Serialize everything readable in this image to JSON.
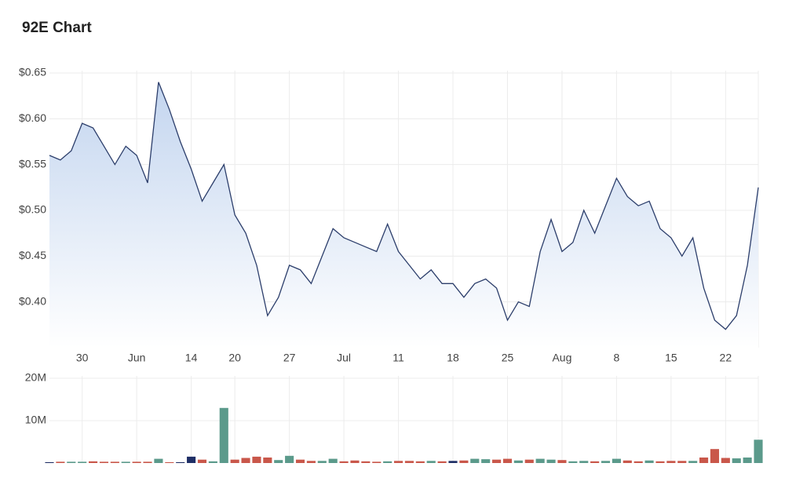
{
  "chart_data": [
    {
      "type": "area",
      "title": "92E Chart",
      "categories": [
        null,
        null,
        null,
        "30",
        null,
        null,
        null,
        null,
        "Jun",
        null,
        null,
        null,
        null,
        "14",
        null,
        null,
        null,
        "20",
        null,
        null,
        null,
        null,
        "27",
        null,
        null,
        null,
        null,
        "Jul",
        null,
        null,
        null,
        null,
        "11",
        null,
        null,
        null,
        null,
        "18",
        null,
        null,
        null,
        null,
        "25",
        null,
        null,
        null,
        null,
        "Aug",
        null,
        null,
        null,
        null,
        "8",
        null,
        null,
        null,
        null,
        "15",
        null,
        null,
        null,
        null,
        "22",
        null,
        null,
        null
      ],
      "values": [
        0.56,
        0.555,
        0.565,
        0.595,
        0.59,
        0.57,
        0.55,
        0.57,
        0.56,
        0.53,
        0.64,
        0.61,
        0.575,
        0.545,
        0.51,
        0.53,
        0.55,
        0.495,
        0.475,
        0.44,
        0.385,
        0.405,
        0.44,
        0.435,
        0.42,
        0.45,
        0.48,
        0.47,
        0.465,
        0.46,
        0.455,
        0.485,
        0.455,
        0.44,
        0.425,
        0.435,
        0.42,
        0.42,
        0.405,
        0.42,
        0.425,
        0.415,
        0.38,
        0.4,
        0.395,
        0.455,
        0.49,
        0.455,
        0.465,
        0.5,
        0.475,
        0.505,
        0.535,
        0.515,
        0.505,
        0.51,
        0.48,
        0.47,
        0.45,
        0.47,
        0.415,
        0.38,
        0.37,
        0.385,
        0.44,
        0.525
      ],
      "color": "#2c3e6b",
      "ylim": [
        0.35,
        0.65
      ],
      "yticks": [
        {
          "value": 0.4,
          "label": "$0.40"
        },
        {
          "value": 0.45,
          "label": "$0.45"
        },
        {
          "value": 0.5,
          "label": "$0.50"
        },
        {
          "value": 0.55,
          "label": "$0.55"
        },
        {
          "value": 0.6,
          "label": "$0.60"
        },
        {
          "value": 0.65,
          "label": "$0.65"
        }
      ],
      "grid": true
    },
    {
      "type": "bar",
      "values": [
        200000,
        300000,
        300000,
        300000,
        400000,
        300000,
        300000,
        300000,
        300000,
        300000,
        1000000,
        200000,
        200000,
        1500000,
        800000,
        400000,
        13000000,
        800000,
        1200000,
        1500000,
        1300000,
        700000,
        1700000,
        800000,
        500000,
        500000,
        1000000,
        400000,
        600000,
        400000,
        300000,
        400000,
        500000,
        500000,
        400000,
        500000,
        400000,
        500000,
        600000,
        1000000,
        900000,
        800000,
        1000000,
        600000,
        800000,
        1000000,
        800000,
        700000,
        400000,
        500000,
        400000,
        500000,
        1000000,
        600000,
        400000,
        600000,
        400000,
        500000,
        500000,
        500000,
        1300000,
        3300000,
        1200000,
        1100000,
        1300000,
        5500000
      ],
      "colors": [
        "#1f2f66",
        "#c9574a",
        "#5b9a8b",
        "#5b9a8b",
        "#c9574a",
        "#c9574a",
        "#c9574a",
        "#5b9a8b",
        "#c9574a",
        "#c9574a",
        "#5b9a8b",
        "#c9574a",
        "#1f2f66",
        "#1f2f66",
        "#c9574a",
        "#5b9a8b",
        "#5b9a8b",
        "#c9574a",
        "#c9574a",
        "#c9574a",
        "#c9574a",
        "#5b9a8b",
        "#5b9a8b",
        "#c9574a",
        "#c9574a",
        "#5b9a8b",
        "#5b9a8b",
        "#c9574a",
        "#c9574a",
        "#c9574a",
        "#c9574a",
        "#5b9a8b",
        "#c9574a",
        "#c9574a",
        "#c9574a",
        "#5b9a8b",
        "#c9574a",
        "#1f2f66",
        "#c9574a",
        "#5b9a8b",
        "#5b9a8b",
        "#c9574a",
        "#c9574a",
        "#5b9a8b",
        "#c9574a",
        "#5b9a8b",
        "#5b9a8b",
        "#c9574a",
        "#5b9a8b",
        "#5b9a8b",
        "#c9574a",
        "#5b9a8b",
        "#5b9a8b",
        "#c9574a",
        "#c9574a",
        "#5b9a8b",
        "#c9574a",
        "#c9574a",
        "#c9574a",
        "#5b9a8b",
        "#c9574a",
        "#c9574a",
        "#c9574a",
        "#5b9a8b",
        "#5b9a8b",
        "#5b9a8b"
      ],
      "ylim": [
        0,
        20000000
      ],
      "yticks": [
        {
          "value": 10000000,
          "label": "10M"
        },
        {
          "value": 20000000,
          "label": "20M"
        }
      ],
      "grid": true
    }
  ]
}
